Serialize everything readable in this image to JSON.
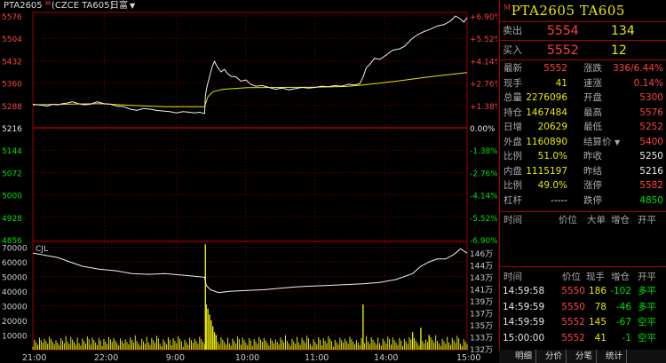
{
  "title": {
    "symbol": "PTA2605",
    "marker": "M",
    "exchange": "(CZCE TA605)",
    "period": "日富"
  },
  "chart_data": {
    "type": "line",
    "price_axis_left": [
      "5576",
      "5504",
      "5432",
      "5360",
      "5288",
      "5216",
      "5144",
      "5072",
      "5000",
      "4928",
      "4856"
    ],
    "price_axis_right": [
      "+6.90%",
      "+5.52%",
      "+4.14%",
      "+2.76%",
      "+1.38%",
      "0.00%",
      "-1.38%",
      "-2.76%",
      "-4.14%",
      "-5.52%",
      "-6.90%"
    ],
    "price_range": [
      4856,
      5576
    ],
    "prev_settle": 5216,
    "volume_axis_left": [
      "70000",
      "60000",
      "50000",
      "40000",
      "30000",
      "20000",
      "10000"
    ],
    "volume_axis_right": [
      "146万",
      "144万",
      "143万",
      "141万",
      "139万",
      "137万",
      "135万",
      "133万",
      "132万"
    ],
    "volume_label": "CJL",
    "time_labels": [
      "21:00",
      "22:00",
      "9:00",
      "10:00",
      "11:00",
      "14:00",
      "15:00"
    ],
    "price_series": [
      [
        0,
        5292
      ],
      [
        6,
        5290
      ],
      [
        12,
        5288
      ],
      [
        18,
        5286
      ],
      [
        24,
        5292
      ],
      [
        30,
        5290
      ],
      [
        36,
        5294
      ],
      [
        42,
        5296
      ],
      [
        48,
        5300
      ],
      [
        55,
        5294
      ],
      [
        62,
        5290
      ],
      [
        70,
        5292
      ],
      [
        78,
        5300
      ],
      [
        86,
        5294
      ],
      [
        94,
        5292
      ],
      [
        102,
        5286
      ],
      [
        110,
        5284
      ],
      [
        118,
        5276
      ],
      [
        126,
        5272
      ],
      [
        134,
        5278
      ],
      [
        142,
        5276
      ],
      [
        150,
        5272
      ],
      [
        158,
        5270
      ],
      [
        166,
        5268
      ],
      [
        174,
        5264
      ],
      [
        182,
        5268
      ],
      [
        190,
        5266
      ],
      [
        196,
        5264
      ],
      [
        202,
        5266
      ],
      [
        208,
        5262
      ],
      [
        209,
        5320
      ],
      [
        211,
        5350
      ],
      [
        214,
        5380
      ],
      [
        217,
        5410
      ],
      [
        220,
        5430
      ],
      [
        224,
        5410
      ],
      [
        228,
        5396
      ],
      [
        232,
        5404
      ],
      [
        236,
        5390
      ],
      [
        240,
        5382
      ],
      [
        246,
        5380
      ],
      [
        252,
        5366
      ],
      [
        258,
        5370
      ],
      [
        264,
        5356
      ],
      [
        270,
        5350
      ],
      [
        278,
        5352
      ],
      [
        286,
        5346
      ],
      [
        294,
        5340
      ],
      [
        302,
        5344
      ],
      [
        310,
        5338
      ],
      [
        318,
        5342
      ],
      [
        326,
        5346
      ],
      [
        334,
        5344
      ],
      [
        342,
        5346
      ],
      [
        350,
        5350
      ],
      [
        358,
        5348
      ],
      [
        366,
        5352
      ],
      [
        374,
        5350
      ],
      [
        382,
        5356
      ],
      [
        390,
        5354
      ],
      [
        396,
        5358
      ],
      [
        400,
        5380
      ],
      [
        404,
        5410
      ],
      [
        408,
        5420
      ],
      [
        414,
        5440
      ],
      [
        420,
        5436
      ],
      [
        428,
        5450
      ],
      [
        436,
        5466
      ],
      [
        444,
        5470
      ],
      [
        450,
        5478
      ],
      [
        458,
        5500
      ],
      [
        466,
        5516
      ],
      [
        474,
        5526
      ],
      [
        482,
        5534
      ],
      [
        490,
        5544
      ],
      [
        498,
        5548
      ],
      [
        506,
        5560
      ],
      [
        512,
        5576
      ],
      [
        518,
        5566
      ],
      [
        522,
        5556
      ],
      [
        526,
        5570
      ]
    ],
    "avg_series": [
      [
        0,
        5290
      ],
      [
        40,
        5292
      ],
      [
        80,
        5294
      ],
      [
        120,
        5288
      ],
      [
        160,
        5284
      ],
      [
        208,
        5284
      ],
      [
        212,
        5316
      ],
      [
        218,
        5332
      ],
      [
        230,
        5340
      ],
      [
        260,
        5345
      ],
      [
        300,
        5346
      ],
      [
        340,
        5347
      ],
      [
        380,
        5349
      ],
      [
        400,
        5354
      ],
      [
        440,
        5366
      ],
      [
        480,
        5380
      ],
      [
        526,
        5394
      ]
    ],
    "volume_series": [
      [
        0,
        66000
      ],
      [
        10,
        65000
      ],
      [
        20,
        64000
      ],
      [
        30,
        63000
      ],
      [
        45,
        60000
      ],
      [
        60,
        57000
      ],
      [
        80,
        55000
      ],
      [
        100,
        54000
      ],
      [
        120,
        52000
      ],
      [
        140,
        51500
      ],
      [
        160,
        52000
      ],
      [
        180,
        51000
      ],
      [
        200,
        50000
      ],
      [
        208,
        49500
      ],
      [
        210,
        44000
      ],
      [
        215,
        41000
      ],
      [
        225,
        39000
      ],
      [
        240,
        40000
      ],
      [
        260,
        40500
      ],
      [
        280,
        41000
      ],
      [
        300,
        42000
      ],
      [
        320,
        43000
      ],
      [
        340,
        43500
      ],
      [
        360,
        44000
      ],
      [
        380,
        44500
      ],
      [
        400,
        45000
      ],
      [
        420,
        46000
      ],
      [
        440,
        48000
      ],
      [
        460,
        52000
      ],
      [
        470,
        57000
      ],
      [
        480,
        60000
      ],
      [
        490,
        62000
      ],
      [
        500,
        62000
      ],
      [
        510,
        65000
      ],
      [
        518,
        69000
      ],
      [
        526,
        66000
      ]
    ],
    "volume_bars": [
      [
        209,
        72000
      ],
      [
        210,
        31000
      ],
      [
        212,
        28000
      ],
      [
        214,
        24000
      ],
      [
        216,
        20000
      ],
      [
        218,
        16000
      ],
      [
        220,
        12000
      ],
      [
        222,
        10000
      ],
      [
        400,
        31000
      ],
      [
        460,
        12000
      ],
      [
        470,
        15000
      ],
      [
        480,
        10000
      ]
    ]
  },
  "panel": {
    "header_marker": "M",
    "header": "PTA2605  TA605",
    "ask_label": "卖出",
    "ask_price": "5554",
    "ask_vol": "134",
    "bid_label": "买入",
    "bid_price": "5552",
    "bid_vol": "12",
    "stats": [
      {
        "l1": "最新",
        "v1": "5552",
        "c1": "red",
        "l2": "涨跌",
        "v2": "336/6.44%",
        "c2": "red"
      },
      {
        "l1": "现手",
        "v1": "41",
        "c1": "yel",
        "l2": "速涨",
        "v2": "0.14%",
        "c2": "red"
      },
      {
        "l1": "总量",
        "v1": "2276096",
        "c1": "yel",
        "l2": "开盘",
        "v2": "5300",
        "c2": "red"
      },
      {
        "l1": "持仓",
        "v1": "1467484",
        "c1": "yel",
        "l2": "最高",
        "v2": "5576",
        "c2": "red"
      },
      {
        "l1": "日增",
        "v1": "20629",
        "c1": "yel",
        "l2": "最低",
        "v2": "5252",
        "c2": "red"
      },
      {
        "l1": "外盘",
        "v1": "1160890",
        "c1": "yel",
        "l2": "结算价",
        "v2": "5400",
        "c2": "red"
      },
      {
        "l1": "比例",
        "v1": "51.0%",
        "c1": "yel",
        "l2": "昨收",
        "v2": "5250",
        "c2": "wht"
      },
      {
        "l1": "内盘",
        "v1": "1115197",
        "c1": "yel",
        "l2": "昨结",
        "v2": "5216",
        "c2": "wht"
      },
      {
        "l1": "比例",
        "v1": "49.0%",
        "c1": "yel",
        "l2": "涨停",
        "v2": "5582",
        "c2": "red"
      },
      {
        "l1": "杠杆",
        "v1": "-----",
        "c1": "wht",
        "l2": "跌停",
        "v2": "4850",
        "c2": "green"
      }
    ],
    "settle_arrow": "▼",
    "big_header": {
      "time": "时间",
      "price": "价位",
      "big": "大单",
      "cang": "增仓",
      "kp": "开平"
    },
    "ticks_header": {
      "time": "时间",
      "price": "价位",
      "vol": "现手",
      "cang": "增仓",
      "kp": "开平"
    },
    "ticks": [
      {
        "time": "14:59:58",
        "price": "5550",
        "vol": "186",
        "cang": "-102",
        "kp": "多平"
      },
      {
        "time": "14:59:59",
        "price": "5550",
        "vol": "78",
        "cang": "-46",
        "kp": "多平"
      },
      {
        "time": "14:59:59",
        "price": "5552",
        "vol": "145",
        "cang": "-67",
        "kp": "空平"
      },
      {
        "time": "15:00:00",
        "price": "5552",
        "vol": "41",
        "cang": "-1",
        "kp": "空平"
      }
    ]
  },
  "tabs": [
    "明细",
    "分价",
    "分笔",
    "统计"
  ]
}
